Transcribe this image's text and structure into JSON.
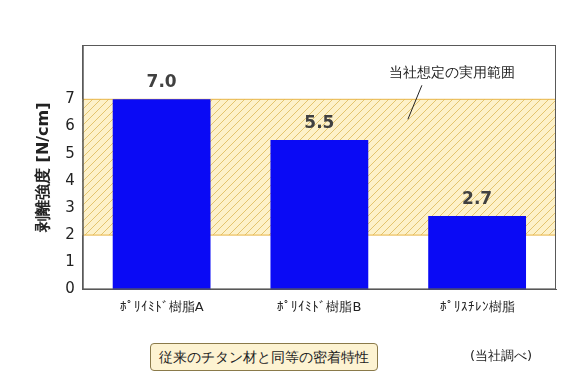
{
  "chart_data": {
    "type": "bar",
    "y_label": "剥離強度 [N/cm]",
    "categories": [
      "ﾎﾟﾘｲﾐﾄﾞ樹脂A",
      "ﾎﾟﾘｲﾐﾄﾞ樹脂B",
      "ﾎﾟﾘｽﾁﾚﾝ樹脂"
    ],
    "values": [
      7.0,
      5.5,
      2.7
    ],
    "value_labels": [
      "7.0",
      "5.5",
      "2.7"
    ],
    "data_labels": true,
    "color": "#0a0af5",
    "ylim": [
      0,
      9
    ],
    "yticks": [
      0,
      1,
      2,
      3,
      4,
      5,
      6,
      7
    ],
    "grid": false,
    "band": {
      "label": "当社想定の実用範囲",
      "from": 2,
      "to": 7
    },
    "note": "従来のチタン材と同等の密着特性",
    "source": "(当社調べ)"
  }
}
